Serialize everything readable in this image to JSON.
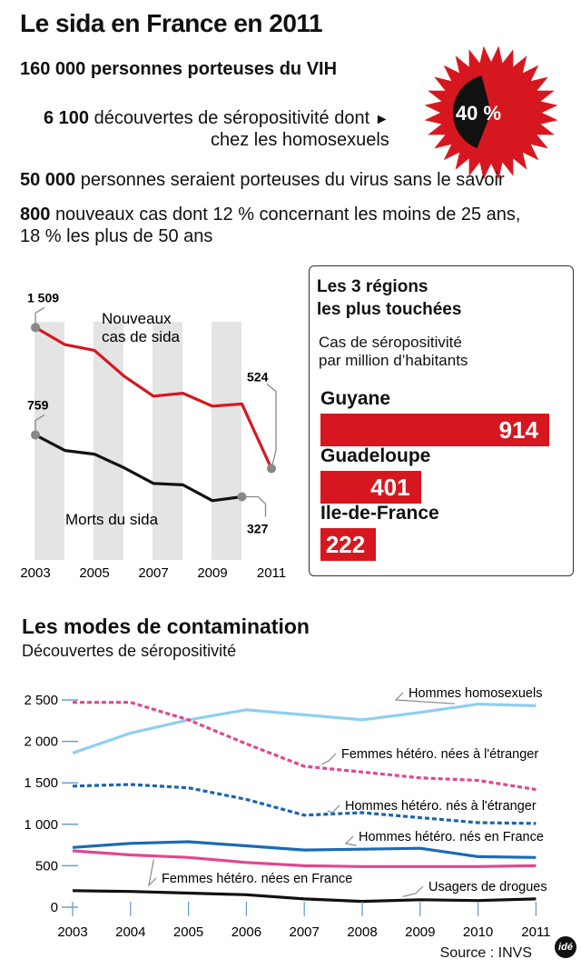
{
  "title": "Le sida en France en 2011",
  "stats": {
    "line1": {
      "number": "160 000",
      "text": "personnes porteuses du VIH"
    },
    "line2": {
      "number": "6 100",
      "text": "découvertes de séropositivité dont",
      "text2": "chez les homosexuels"
    },
    "arrow": "►",
    "percent_badge": "40 %",
    "percent_value": 40,
    "line3": {
      "number": "50 000",
      "text": "personnes seraient porteuses du virus sans le savoir"
    },
    "line4": {
      "number": "800",
      "text": "nouveaux cas dont 12 % concernant les moins de 25 ans,",
      "text2": "18 % les plus de 50 ans"
    }
  },
  "regions": {
    "title_line1": "Les 3 régions",
    "title_line2": "les plus touchées",
    "subtitle_line1": "Cas de séropositivité",
    "subtitle_line2": "par million d’habitants"
  },
  "source": "Source : INVS",
  "logo": "idé",
  "colors": {
    "red": "#d7171f",
    "black": "#111111",
    "light_blue": "#8ecfef",
    "pink": "#e2468f",
    "dark_blue": "#1c64b0",
    "blue": "#1a6bb5",
    "grey_band": "#e4e4e4"
  },
  "chart_data": [
    {
      "type": "line",
      "x": [
        2003,
        2004,
        2005,
        2006,
        2007,
        2008,
        2009,
        2010,
        2011
      ],
      "x_tick_labels": [
        "2003",
        "2005",
        "2007",
        "2009",
        "2011"
      ],
      "series": [
        {
          "name": "Nouveaux cas de sida",
          "label_line1": "Nouveaux",
          "label_line2": "cas de sida",
          "color": "#d7171f",
          "values": [
            1509,
            1390,
            1350,
            1170,
            1030,
            1050,
            960,
            975,
            524
          ],
          "start_label": "1 509",
          "end_label": "524"
        },
        {
          "name": "Morts du sida",
          "label_line1": "Morts du sida",
          "color": "#111111",
          "values": [
            759,
            650,
            625,
            530,
            420,
            410,
            300,
            327
          ],
          "x": [
            2003,
            2004,
            2005,
            2006,
            2007,
            2008,
            2009,
            2010
          ],
          "start_label": "759",
          "end_label": "327"
        }
      ],
      "ylim": [
        0,
        1600
      ],
      "grid": false
    },
    {
      "type": "bar",
      "orientation": "horizontal",
      "categories": [
        "Guyane",
        "Guadeloupe",
        "Ile-de-France"
      ],
      "values": [
        914,
        401,
        222
      ],
      "value_labels": [
        "914",
        "401",
        "222"
      ],
      "xlim": [
        0,
        914
      ]
    },
    {
      "type": "line",
      "title": "Les modes de contamination",
      "subtitle": "Découvertes de séropositivité",
      "x": [
        2003,
        2004,
        2005,
        2006,
        2007,
        2008,
        2009,
        2010,
        2011
      ],
      "x_tick_labels": [
        "2003",
        "2004",
        "2005",
        "2006",
        "2007",
        "2008",
        "2009",
        "2010",
        "2011"
      ],
      "y_ticks": [
        0,
        500,
        1000,
        1500,
        2000,
        2500
      ],
      "y_tick_labels": [
        "0",
        "500",
        "1 000",
        "1 500",
        "2 000",
        "2 500"
      ],
      "ylim": [
        0,
        2500
      ],
      "series": [
        {
          "name": "Hommes homosexuels",
          "color": "#8ecfef",
          "dashed": false,
          "values": [
            1860,
            2100,
            2260,
            2380,
            2320,
            2260,
            2350,
            2450,
            2430
          ]
        },
        {
          "name": "Femmes hétéro. nées à l'étranger",
          "color": "#e2468f",
          "dashed": true,
          "values": [
            2470,
            2470,
            2260,
            1970,
            1700,
            1630,
            1560,
            1530,
            1420
          ]
        },
        {
          "name": "Hommes hétéro. nés à l'étranger",
          "color": "#1c64b0",
          "dashed": true,
          "values": [
            1460,
            1480,
            1440,
            1300,
            1110,
            1140,
            1080,
            1020,
            1010
          ]
        },
        {
          "name": "Hommes hétéro. nés en France",
          "color": "#1a6bb5",
          "dashed": false,
          "values": [
            720,
            770,
            790,
            740,
            690,
            700,
            710,
            610,
            600
          ]
        },
        {
          "name": "Femmes hétéro. nées en France",
          "color": "#e2468f",
          "dashed": false,
          "values": [
            680,
            630,
            600,
            540,
            500,
            490,
            490,
            490,
            500
          ]
        },
        {
          "name": "Usagers de drogues",
          "color": "#111111",
          "dashed": false,
          "values": [
            200,
            190,
            170,
            150,
            100,
            70,
            90,
            80,
            100
          ]
        }
      ],
      "grid": false
    }
  ]
}
